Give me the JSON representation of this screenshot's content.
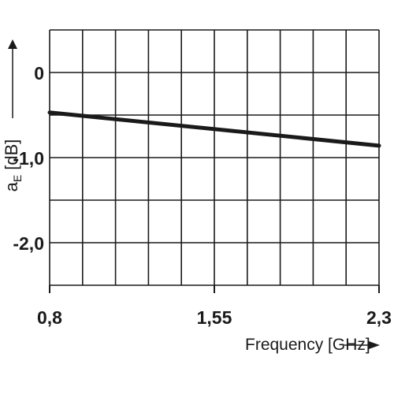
{
  "chart_data": {
    "type": "line",
    "xlabel": "Frequency [GHz]",
    "ylabel_main": "a",
    "ylabel_sub": "E",
    "ylabel_unit": "[dB]",
    "x_ticks": [
      {
        "value": 0.8,
        "label": "0,8"
      },
      {
        "value": 1.55,
        "label": "1,55"
      },
      {
        "value": 2.3,
        "label": "2,3"
      }
    ],
    "y_ticks": [
      {
        "value": 0,
        "label": "0"
      },
      {
        "value": -1.0,
        "label": "-1,0"
      },
      {
        "value": -2.0,
        "label": "-2,0"
      }
    ],
    "xlim": [
      0.8,
      2.3
    ],
    "ylim": [
      -2.5,
      0.5
    ],
    "x_grid_divisions": 10,
    "grid": true,
    "series": [
      {
        "x": [
          0.8,
          2.3
        ],
        "y": [
          -0.47,
          -0.86
        ]
      }
    ],
    "colors": {
      "grid": "#1a1a1a",
      "line": "#1a1a1a"
    }
  }
}
